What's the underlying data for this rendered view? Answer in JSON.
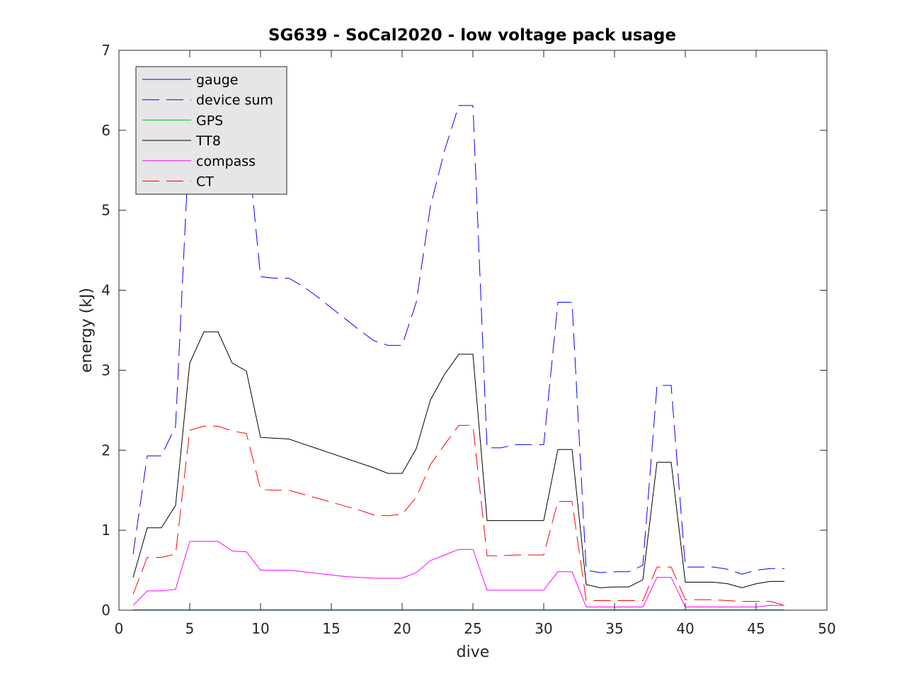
{
  "chart_data": {
    "type": "line",
    "title": "SG639 - SoCal2020 - low voltage pack usage",
    "xlabel": "dive",
    "ylabel": "energy (kJ)",
    "xlim": [
      0,
      50
    ],
    "ylim": [
      0,
      7
    ],
    "xticks": [
      0,
      5,
      10,
      15,
      20,
      25,
      30,
      35,
      40,
      45,
      50
    ],
    "yticks": [
      0,
      1,
      2,
      3,
      4,
      5,
      6,
      7
    ],
    "xtick_labels": [
      "0",
      "5",
      "10",
      "15",
      "20",
      "25",
      "30",
      "35",
      "40",
      "45",
      "50"
    ],
    "ytick_labels": [
      "0",
      "1",
      "2",
      "3",
      "4",
      "5",
      "6",
      "7"
    ],
    "grid": false,
    "legend_position": "top-left",
    "x": [
      1,
      2,
      3,
      4,
      5,
      6,
      7,
      8,
      9,
      10,
      11,
      12,
      13,
      14,
      15,
      16,
      17,
      18,
      19,
      20,
      21,
      22,
      23,
      24,
      25,
      26,
      27,
      28,
      29,
      30,
      31,
      32,
      33,
      34,
      35,
      36,
      37,
      38,
      39,
      40,
      41,
      42,
      43,
      44,
      45,
      46,
      47
    ],
    "series": [
      {
        "name": "gauge",
        "color": "#0000ff",
        "style": "solid",
        "values": [
          null,
          null,
          null,
          null,
          null,
          null,
          null,
          null,
          null,
          null,
          null,
          null,
          null,
          null,
          null,
          null,
          null,
          null,
          null,
          null,
          null,
          null,
          null,
          null,
          null,
          null,
          null,
          null,
          null,
          null,
          null,
          null,
          null,
          null,
          null,
          null,
          null,
          null,
          null,
          null,
          null,
          null,
          null,
          null,
          null,
          null,
          null
        ]
      },
      {
        "name": "device sum",
        "color": "#0000ff",
        "style": "dashed",
        "values": [
          0.7,
          1.93,
          1.93,
          2.3,
          6.0,
          6.65,
          6.65,
          6.05,
          6.0,
          4.17,
          4.15,
          4.15,
          4.05,
          3.92,
          3.78,
          3.64,
          3.5,
          3.37,
          3.31,
          3.31,
          3.85,
          5.05,
          5.75,
          6.31,
          6.31,
          2.03,
          2.03,
          2.07,
          2.07,
          2.07,
          3.85,
          3.85,
          0.5,
          0.47,
          0.48,
          0.48,
          0.56,
          2.81,
          2.81,
          0.54,
          0.54,
          0.54,
          0.51,
          0.45,
          0.5,
          0.52,
          0.52
        ]
      },
      {
        "name": "GPS",
        "color": "#00cc00",
        "style": "solid",
        "values": [
          0.005,
          0.005,
          0.005,
          0.005,
          0.005,
          0.005,
          0.005,
          0.005,
          0.005,
          0.005,
          0.005,
          0.005,
          0.005,
          0.005,
          0.005,
          0.005,
          0.005,
          0.005,
          0.005,
          0.005,
          0.005,
          0.005,
          0.005,
          0.005,
          0.005,
          0.005,
          0.005,
          0.005,
          0.005,
          0.005,
          0.005,
          0.005,
          0.005,
          0.005,
          0.005,
          0.005,
          0.005,
          0.005,
          0.005,
          0.005,
          0.005,
          0.005,
          0.005,
          0.005,
          0.005,
          0.005,
          0.005
        ]
      },
      {
        "name": "TT8",
        "color": "#000000",
        "style": "solid",
        "values": [
          0.41,
          1.03,
          1.03,
          1.31,
          3.09,
          3.48,
          3.48,
          3.09,
          2.99,
          2.16,
          2.15,
          2.14,
          2.08,
          2.02,
          1.96,
          1.9,
          1.84,
          1.78,
          1.71,
          1.71,
          2.02,
          2.63,
          2.95,
          3.2,
          3.2,
          1.12,
          1.12,
          1.12,
          1.12,
          1.12,
          2.01,
          2.01,
          0.32,
          0.28,
          0.29,
          0.29,
          0.38,
          1.85,
          1.85,
          0.35,
          0.35,
          0.35,
          0.33,
          0.28,
          0.33,
          0.36,
          0.36
        ]
      },
      {
        "name": "compass",
        "color": "#ff00ff",
        "style": "solid",
        "values": [
          0.06,
          0.24,
          0.24,
          0.26,
          0.86,
          0.86,
          0.86,
          0.74,
          0.73,
          0.5,
          0.5,
          0.5,
          0.48,
          0.46,
          0.44,
          0.42,
          0.41,
          0.4,
          0.4,
          0.4,
          0.47,
          0.62,
          0.69,
          0.76,
          0.76,
          0.25,
          0.25,
          0.25,
          0.25,
          0.25,
          0.48,
          0.48,
          0.04,
          0.04,
          0.04,
          0.04,
          0.04,
          0.41,
          0.41,
          0.04,
          0.04,
          0.04,
          0.04,
          0.04,
          0.04,
          0.06,
          0.06
        ]
      },
      {
        "name": "CT",
        "color": "#ff0000",
        "style": "dashed",
        "values": [
          0.2,
          0.66,
          0.66,
          0.7,
          2.25,
          2.3,
          2.3,
          2.24,
          2.21,
          1.51,
          1.5,
          1.5,
          1.45,
          1.4,
          1.35,
          1.3,
          1.25,
          1.19,
          1.18,
          1.2,
          1.41,
          1.82,
          2.07,
          2.31,
          2.31,
          0.68,
          0.68,
          0.69,
          0.69,
          0.69,
          1.36,
          1.36,
          0.12,
          0.12,
          0.12,
          0.12,
          0.12,
          0.54,
          0.54,
          0.13,
          0.13,
          0.13,
          0.12,
          0.11,
          0.11,
          0.11,
          0.06
        ]
      }
    ]
  }
}
